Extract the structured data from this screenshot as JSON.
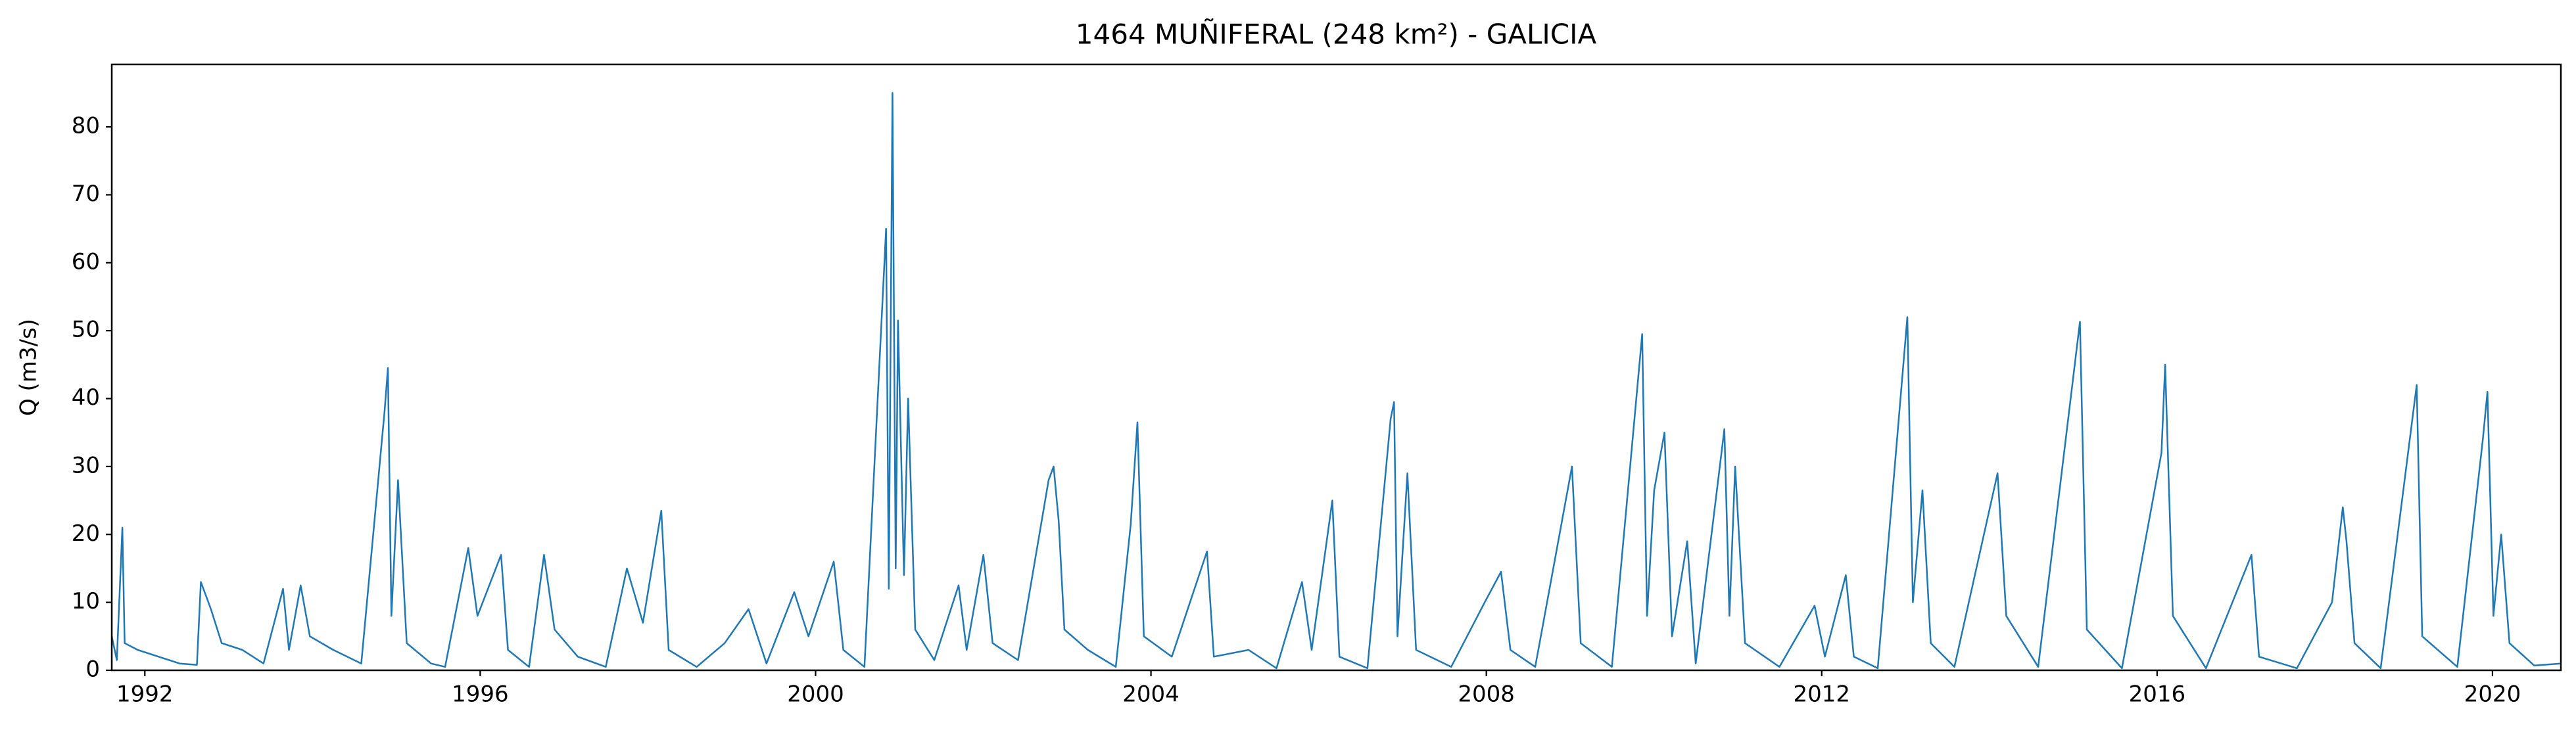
{
  "chart_data": {
    "type": "line",
    "title": "1464 MUÑIFERAL (248 km²) - GALICIA",
    "y_label": "Q (m3/s)",
    "x": [
      "1991-08-10",
      "1991-09-01",
      "1991-09-25",
      "1991-10-05",
      "1991-12-01",
      "1992-03-01",
      "1992-06-01",
      "1992-08-15",
      "1992-09-01",
      "1992-10-15",
      "1992-12-01",
      "1993-03-01",
      "1993-06-01",
      "1993-08-25",
      "1993-09-20",
      "1993-11-10",
      "1993-12-20",
      "1994-04-01",
      "1994-08-01",
      "1994-11-10",
      "1994-11-25",
      "1994-12-10",
      "1995-01-08",
      "1995-02-15",
      "1995-06-01",
      "1995-08-01",
      "1995-11-10",
      "1995-12-20",
      "1996-04-01",
      "1996-05-01",
      "1996-08-01",
      "1996-10-05",
      "1996-11-20",
      "1997-03-01",
      "1997-07-01",
      "1997-10-01",
      "1997-12-10",
      "1998-02-28",
      "1998-04-01",
      "1998-08-01",
      "1998-12-01",
      "1999-03-15",
      "1999-06-01",
      "1999-09-30",
      "1999-12-01",
      "2000-03-20",
      "2000-05-01",
      "2000-08-01",
      "2000-11-03",
      "2000-11-15",
      "2000-12-01",
      "2000-12-15",
      "2000-12-25",
      "2001-01-20",
      "2001-02-07",
      "2001-03-10",
      "2001-06-01",
      "2001-09-15",
      "2001-10-20",
      "2002-01-01",
      "2002-02-10",
      "2002-06-01",
      "2002-10-12",
      "2002-11-03",
      "2002-11-25",
      "2002-12-20",
      "2003-04-01",
      "2003-08-01",
      "2003-10-05",
      "2003-11-03",
      "2003-12-01",
      "2004-04-01",
      "2004-09-01",
      "2004-10-01",
      "2005-03-01",
      "2005-07-01",
      "2005-10-20",
      "2005-12-01",
      "2006-03-01",
      "2006-04-01",
      "2006-08-01",
      "2006-11-10",
      "2006-11-25",
      "2006-12-10",
      "2007-01-22",
      "2007-03-01",
      "2007-08-01",
      "2007-12-25",
      "2008-03-05",
      "2008-04-15",
      "2008-08-01",
      "2009-01-08",
      "2009-02-15",
      "2009-07-01",
      "2009-11-10",
      "2009-12-01",
      "2010-01-01",
      "2010-02-15",
      "2010-03-20",
      "2010-05-25",
      "2010-07-01",
      "2010-11-03",
      "2010-11-25",
      "2010-12-20",
      "2011-02-01",
      "2011-07-01",
      "2011-12-01",
      "2012-01-15",
      "2012-04-15",
      "2012-05-20",
      "2012-09-01",
      "2013-01-08",
      "2013-02-01",
      "2013-03-15",
      "2013-04-20",
      "2013-08-01",
      "2014-02-05",
      "2014-03-15",
      "2014-08-01",
      "2015-01-30",
      "2015-03-01",
      "2015-08-01",
      "2016-01-20",
      "2016-02-05",
      "2016-03-10",
      "2016-08-01",
      "2017-02-15",
      "2017-03-20",
      "2017-09-01",
      "2018-02-01",
      "2018-03-20",
      "2018-04-05",
      "2018-05-10",
      "2018-09-01",
      "2019-02-05",
      "2019-03-01",
      "2019-08-01",
      "2019-11-20",
      "2019-12-10",
      "2020-01-05",
      "2020-02-08",
      "2020-03-15",
      "2020-07-01",
      "2020-10-25"
    ],
    "series": [
      {
        "name": "Q",
        "color": "#1f77b4",
        "values": [
          5,
          1.5,
          21,
          4,
          3,
          2,
          1,
          0.8,
          13,
          9,
          4,
          3,
          1,
          12,
          3,
          12.5,
          5,
          3,
          1,
          38,
          44.5,
          8,
          28,
          4,
          1,
          0.5,
          18,
          8,
          17,
          3,
          0.5,
          17,
          6,
          2,
          0.5,
          15,
          7,
          23.5,
          3,
          0.5,
          4,
          9,
          1,
          11.5,
          5,
          16,
          3,
          0.5,
          65,
          12,
          85,
          15,
          51.5,
          14,
          40,
          6,
          1.5,
          12.5,
          3,
          17,
          4,
          1.5,
          28,
          30,
          22,
          6,
          3,
          0.5,
          21.5,
          36.5,
          5,
          2,
          17.5,
          2,
          3,
          0.3,
          13,
          3,
          25,
          2,
          0.3,
          37,
          39.5,
          5,
          29,
          3,
          0.5,
          10,
          14.5,
          3,
          0.5,
          30,
          4,
          0.5,
          49.5,
          8,
          26.5,
          35,
          5,
          19,
          1,
          35.5,
          8,
          30,
          4,
          0.5,
          9.5,
          2,
          14,
          2,
          0.3,
          52,
          10,
          26.5,
          4,
          0.5,
          29,
          8,
          0.5,
          51.3,
          6,
          0.3,
          32,
          45,
          8,
          0.3,
          17,
          2,
          0.3,
          10,
          24,
          19,
          4,
          0.3,
          42,
          5,
          0.5,
          34,
          41,
          8,
          20,
          4,
          0.7,
          1
        ]
      }
    ],
    "xlim": [
      "1991-08-10",
      "2020-10-25"
    ],
    "xticks": [
      {
        "value": "1992-01-01",
        "label": "1992"
      },
      {
        "value": "1996-01-01",
        "label": "1996"
      },
      {
        "value": "2000-01-01",
        "label": "2000"
      },
      {
        "value": "2004-01-01",
        "label": "2004"
      },
      {
        "value": "2008-01-01",
        "label": "2008"
      },
      {
        "value": "2012-01-01",
        "label": "2012"
      },
      {
        "value": "2016-01-01",
        "label": "2016"
      },
      {
        "value": "2020-01-01",
        "label": "2020"
      }
    ],
    "ylim": [
      0,
      89.2
    ],
    "yticks": [
      0,
      10,
      20,
      30,
      40,
      50,
      60,
      70,
      80
    ]
  }
}
